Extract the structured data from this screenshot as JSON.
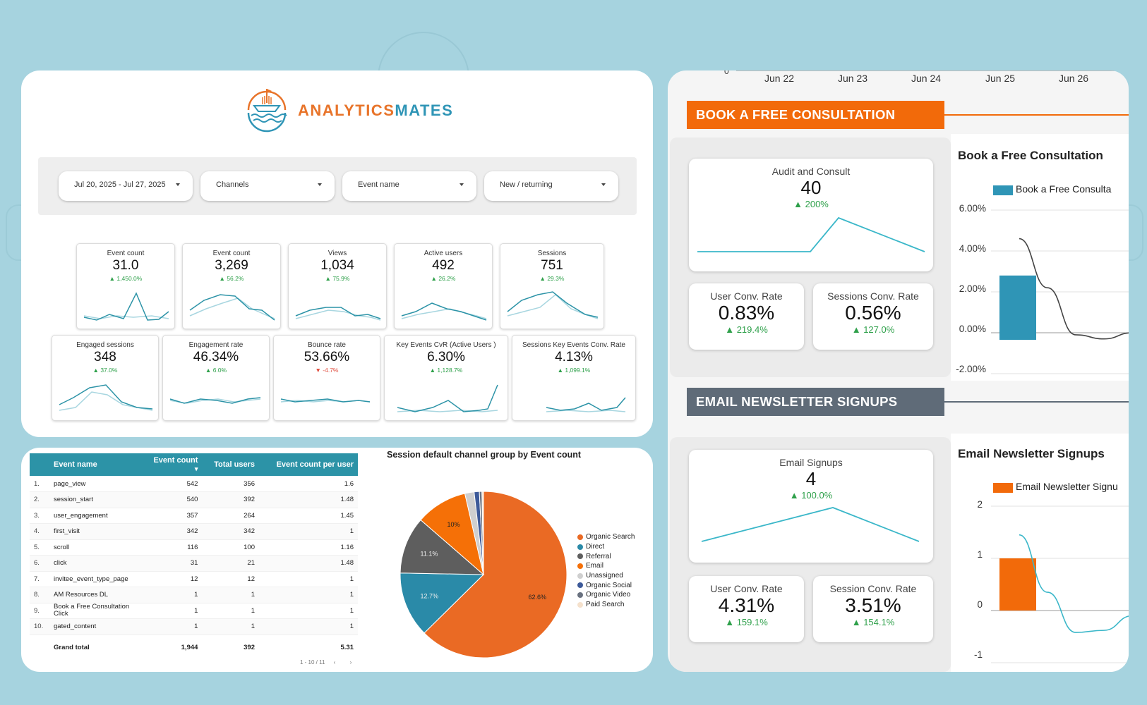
{
  "brand": {
    "text_left": "ANALYTICS",
    "text_right": "MATES"
  },
  "filters": [
    {
      "label": "Jul 20, 2025 - Jul 27, 2025"
    },
    {
      "label": "Channels"
    },
    {
      "label": "Event name"
    },
    {
      "label": "New / returning"
    }
  ],
  "kpis_row1": [
    {
      "label": "Event count",
      "value": "31.0",
      "change": "1,450.0%",
      "dir": "up"
    },
    {
      "label": "Event count",
      "value": "3,269",
      "change": "56.2%",
      "dir": "up"
    },
    {
      "label": "Views",
      "value": "1,034",
      "change": "75.9%",
      "dir": "up"
    },
    {
      "label": "Active users",
      "value": "492",
      "change": "26.2%",
      "dir": "up"
    },
    {
      "label": "Sessions",
      "value": "751",
      "change": "29.3%",
      "dir": "up"
    }
  ],
  "kpis_row2": [
    {
      "label": "Engaged sessions",
      "value": "348",
      "change": "37.0%",
      "dir": "up"
    },
    {
      "label": "Engagement rate",
      "value": "46.34%",
      "change": "6.0%",
      "dir": "up"
    },
    {
      "label": "Bounce rate",
      "value": "53.66%",
      "change": "-4.7%",
      "dir": "down"
    },
    {
      "label": "Key Events CvR (Active Users )",
      "value": "6.30%",
      "change": "1,128.7%",
      "dir": "up"
    },
    {
      "label": "Sessions Key Events Conv. Rate",
      "value": "4.13%",
      "change": "1,099.1%",
      "dir": "up"
    }
  ],
  "colors": {
    "teal": "#2c93a7",
    "orange": "#f06a10",
    "slate": "#5f6b78",
    "green": "#2ea04a",
    "red": "#e04b3c"
  },
  "table": {
    "headers": [
      "Event name",
      "Event count",
      "Total users",
      "Event count per user"
    ],
    "sort_indicator": "▾",
    "rows": [
      {
        "idx": "1.",
        "name": "page_view",
        "count": "542",
        "users": "356",
        "per": "1.6"
      },
      {
        "idx": "2.",
        "name": "session_start",
        "count": "540",
        "users": "392",
        "per": "1.48"
      },
      {
        "idx": "3.",
        "name": "user_engagement",
        "count": "357",
        "users": "264",
        "per": "1.45"
      },
      {
        "idx": "4.",
        "name": "first_visit",
        "count": "342",
        "users": "342",
        "per": "1"
      },
      {
        "idx": "5.",
        "name": "scroll",
        "count": "116",
        "users": "100",
        "per": "1.16"
      },
      {
        "idx": "6.",
        "name": "click",
        "count": "31",
        "users": "21",
        "per": "1.48"
      },
      {
        "idx": "7.",
        "name": "invitee_event_type_page",
        "count": "12",
        "users": "12",
        "per": "1"
      },
      {
        "idx": "8.",
        "name": "AM Resources DL",
        "count": "1",
        "users": "1",
        "per": "1"
      },
      {
        "idx": "9.",
        "name": "Book a Free Consultation Click",
        "count": "1",
        "users": "1",
        "per": "1"
      },
      {
        "idx": "10.",
        "name": "gated_content",
        "count": "1",
        "users": "1",
        "per": "1"
      }
    ],
    "total": {
      "label": "Grand total",
      "count": "1,944",
      "users": "392",
      "per": "5.31"
    },
    "pager": "1 - 10 / 11"
  },
  "chart_data": [
    {
      "type": "pie",
      "title": "Session default channel group by Event count",
      "slices": [
        {
          "name": "Organic Search",
          "value": 62.6,
          "label": "62.6%",
          "color": "#ea6a24"
        },
        {
          "name": "Direct",
          "value": 12.7,
          "label": "12.7%",
          "color": "#2a8aa8"
        },
        {
          "name": "Referral",
          "value": 11.1,
          "label": "11.1%",
          "color": "#5e5e5e"
        },
        {
          "name": "Email",
          "value": 10.0,
          "label": "10%",
          "color": "#f57007"
        },
        {
          "name": "Unassigned",
          "value": 1.8,
          "label": "",
          "color": "#cfcfcf"
        },
        {
          "name": "Organic Social",
          "value": 1.0,
          "label": "",
          "color": "#3d5a99"
        },
        {
          "name": "Organic Video",
          "value": 0.5,
          "label": "",
          "color": "#6a7280"
        },
        {
          "name": "Paid Search",
          "value": 0.3,
          "label": "",
          "color": "#f5e1cc"
        }
      ],
      "legend": "right"
    },
    {
      "type": "bar",
      "title": "Book a Free Consultation",
      "legend_label": "Book a Free Consulta",
      "y_ticks": [
        "6.00%",
        "4.00%",
        "2.00%",
        "0.00%",
        "-2.00%"
      ],
      "ylim": [
        -0.02,
        0.06
      ],
      "bar_value": 0.028,
      "trend": [
        0.046,
        0.022,
        -0.001,
        -0.003,
        0.0
      ]
    },
    {
      "type": "bar",
      "title": "Email Newsletter Signups",
      "legend_label": "Email Newsletter Signu",
      "y_ticks": [
        "2",
        "1",
        "0",
        "-1"
      ],
      "ylim": [
        -1,
        2
      ],
      "bar_value": 1,
      "trend": [
        1.45,
        0.35,
        -0.42,
        -0.38,
        -0.1
      ]
    },
    {
      "type": "line",
      "x_ticks": [
        "Jun 22",
        "Jun 23",
        "Jun 24",
        "Jun 25",
        "Jun 26"
      ],
      "y_tick": "0"
    }
  ],
  "right": {
    "consult": {
      "header": "BOOK A FREE CONSULTATION",
      "main": {
        "label": "Audit and Consult",
        "value": "40",
        "change": "200%"
      },
      "user_rate": {
        "label": "User Conv. Rate",
        "value": "0.83%",
        "change": "219.4%"
      },
      "session_rate": {
        "label": "Sessions Conv. Rate",
        "value": "0.56%",
        "change": "127.0%"
      }
    },
    "email": {
      "header": "EMAIL NEWSLETTER SIGNUPS",
      "main": {
        "label": "Email Signups",
        "value": "4",
        "change": "100.0%"
      },
      "user_rate": {
        "label": "User Conv. Rate",
        "value": "4.31%",
        "change": "159.1%"
      },
      "session_rate": {
        "label": "Session Conv. Rate",
        "value": "3.51%",
        "change": "154.1%"
      }
    }
  }
}
